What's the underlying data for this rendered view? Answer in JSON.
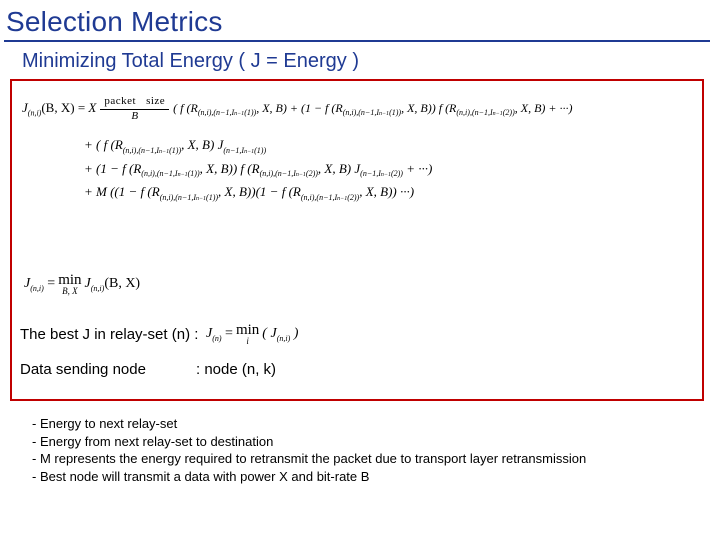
{
  "colors": {
    "title": "#1f3a93",
    "underline": "#1f3a93",
    "subtitle": "#1f3a93",
    "box_border": "#c00000",
    "text": "#000000",
    "background": "#ffffff"
  },
  "fonts": {
    "title_size_pt": 28,
    "subtitle_size_pt": 20,
    "body_size_pt": 15,
    "formula_size_pt": 13,
    "notes_size_pt": 13,
    "formula_family": "Times New Roman",
    "body_family": "Arial"
  },
  "title": "Selection Metrics",
  "subtitle": "Minimizing Total Energy ( J = Energy )",
  "formula": {
    "lhs_sub": "(n,i)",
    "lhs_args": "(B, X)",
    "frac_num": "packet    size",
    "frac_den": "B",
    "line1_tail": "( f (R(n,i),(n−1,In−1(1)), X, B) + (1 − f (R(n,i),(n−1,In−1(1)), X, B)) f (R(n,i),(n−1,In−1(2)), X, B) + ···)",
    "line2": "+ ( f (R(n,i),(n−1,In−1(1)), X, B) J(n−1,In−1(1))",
    "line3": "+ (1 − f (R(n,i),(n−1,In−1(1)), X, B)) f (R(n,i),(n−1,In−1(2)), X, B) J(n−1,In−1(2)) + ···)",
    "line4": "+ M ((1 − f (R(n,i),(n−1,In−1(1)), X, B))(1 − f (R(n,i),(n−1,In−1(2)), X, B)) ···)",
    "min1_lhs_sub": "(n,i)",
    "min1_under": "B, X",
    "min1_rhs_sub": "(n,i)",
    "min1_rhs_args": "(B, X)",
    "best_label": "The best J in relay-set (n)  :",
    "best_under": "i",
    "best_rhs_sub": "(n,i)",
    "sending_label": "Data sending node",
    "sending_value": ":   node (n, k)"
  },
  "notes": {
    "n1": "- Energy to next relay-set",
    "n2": "- Energy from next relay-set to destination",
    "n3": "- M represents the energy required to retransmit the packet due to transport layer retransmission",
    "n4": "- Best node will transmit a data with power X and bit-rate B"
  }
}
